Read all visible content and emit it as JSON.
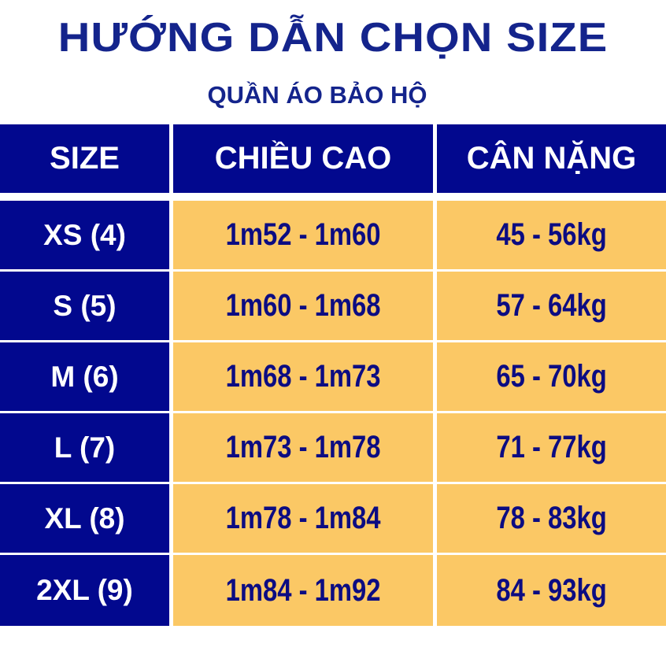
{
  "title": "HƯỚNG DẪN CHỌN SIZE",
  "subtitle": "QUẦN ÁO BẢO HỘ",
  "colors": {
    "header_bg": "#02088e",
    "cell_bg": "#fbc865",
    "title": "#14248c",
    "cell_text": "#0c0c82"
  },
  "table": {
    "headers": [
      "SIZE",
      "CHIỀU CAO",
      "CÂN NẶNG"
    ],
    "rows": [
      {
        "size": "XS (4)",
        "height": "1m52 - 1m60",
        "weight": "45 - 56kg"
      },
      {
        "size": "S (5)",
        "height": "1m60 - 1m68",
        "weight": "57 - 64kg"
      },
      {
        "size": "M (6)",
        "height": "1m68 - 1m73",
        "weight": "65 - 70kg"
      },
      {
        "size": "L (7)",
        "height": "1m73 - 1m78",
        "weight": "71 - 77kg"
      },
      {
        "size": "XL (8)",
        "height": "1m78 - 1m84",
        "weight": "78 - 83kg"
      },
      {
        "size": "2XL (9)",
        "height": "1m84 - 1m92",
        "weight": "84 - 93kg"
      }
    ]
  }
}
